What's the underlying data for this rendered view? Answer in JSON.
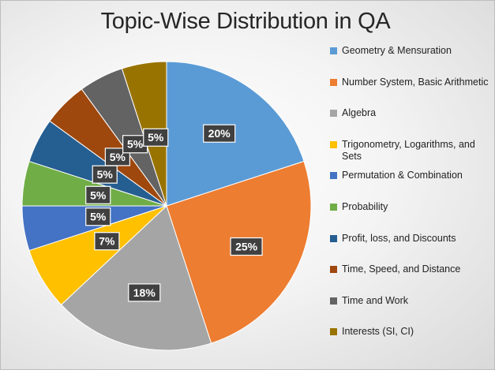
{
  "chart_data": {
    "type": "pie",
    "title": "Topic-Wise Distribution in QA",
    "categories": [
      "Geometry & Mensuration",
      "Number System, Basic Arithmetic",
      "Algebra",
      "Trigonometry, Logarithms, and Sets",
      "Permutation & Combination",
      "Probability",
      "Profit, loss, and Discounts",
      "Time, Speed, and Distance",
      "Time and Work",
      "Interests (SI, CI)"
    ],
    "values": [
      20,
      25,
      18,
      7,
      5,
      5,
      5,
      5,
      5,
      5
    ],
    "labels": [
      "20%",
      "25%",
      "18%",
      "7%",
      "5%",
      "5%",
      "5%",
      "5%",
      "5%",
      "5%"
    ],
    "colors": [
      "#5b9bd5",
      "#ed7d31",
      "#a5a5a5",
      "#ffc000",
      "#4472c4",
      "#70ad47",
      "#255e91",
      "#9e480e",
      "#636363",
      "#997300"
    ],
    "legend_position": "right"
  }
}
